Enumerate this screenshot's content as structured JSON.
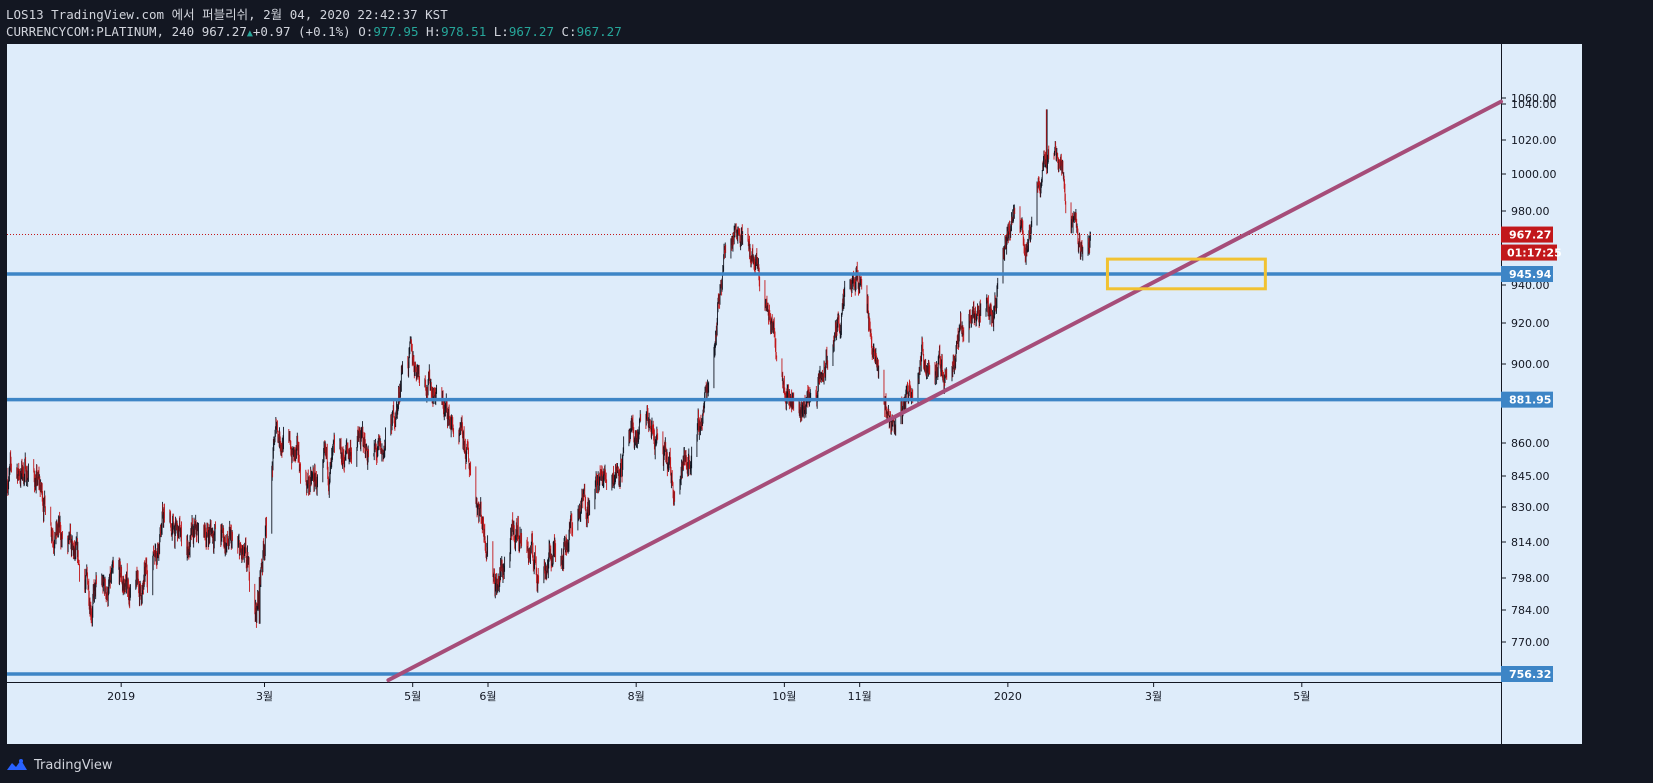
{
  "header": {
    "line1": "LOS13 TradingView.com 에서 퍼블리쉬, 2월 04, 2020 22:42:37 KST",
    "symbol": "CURRENCYCOM:PLATINUM, 240",
    "last": "967.27",
    "change": "+0.97 (+0.1%)",
    "o_label": "O:",
    "o_value": "977.95",
    "h_label": "H:",
    "h_value": "978.51",
    "l_label": "L:",
    "l_value": "967.27",
    "c_label": "C:",
    "c_value": "967.27"
  },
  "footer": {
    "brand": "TradingView"
  },
  "colors": {
    "background": "#131722",
    "plot": "#deecfa",
    "up_candle": "#131722",
    "down_candle": "#c2181b",
    "support": "#3d85c6",
    "trendline": "#a64d79",
    "zone": "#f1c232",
    "price_tag": "#c2181b"
  },
  "chart_data": {
    "type": "candlestick",
    "interval": "240",
    "x_range": [
      "2018-11-15",
      "2020-07-22"
    ],
    "y_ticks": [
      1060.0,
      1040.0,
      1020.0,
      1000.0,
      980.0,
      940.0,
      920.0,
      900.0,
      860.0,
      845.0,
      830.0,
      814.0,
      798.0,
      784.0,
      770.0
    ],
    "x_ticks": [
      {
        "date": "2019-01-01",
        "label": "2019"
      },
      {
        "date": "2019-03-01",
        "label": "3월"
      },
      {
        "date": "2019-05-01",
        "label": "5월"
      },
      {
        "date": "2019-06-01",
        "label": "6월"
      },
      {
        "date": "2019-08-01",
        "label": "8월"
      },
      {
        "date": "2019-10-01",
        "label": "10월"
      },
      {
        "date": "2019-11-01",
        "label": "11월"
      },
      {
        "date": "2020-01-01",
        "label": "2020"
      },
      {
        "date": "2020-03-01",
        "label": "3월"
      },
      {
        "date": "2020-05-01",
        "label": "5월"
      }
    ],
    "price_path": [
      [
        "2018-11-15",
        845
      ],
      [
        "2018-11-25",
        848
      ],
      [
        "2018-12-05",
        820
      ],
      [
        "2018-12-20",
        790
      ],
      [
        "2019-01-01",
        795
      ],
      [
        "2019-01-10",
        792
      ],
      [
        "2019-01-18",
        825
      ],
      [
        "2019-01-28",
        812
      ],
      [
        "2019-02-08",
        820
      ],
      [
        "2019-02-20",
        805
      ],
      [
        "2019-02-26",
        785
      ],
      [
        "2019-03-06",
        868
      ],
      [
        "2019-03-20",
        840
      ],
      [
        "2019-04-01",
        850
      ],
      [
        "2019-04-08",
        862
      ],
      [
        "2019-04-18",
        852
      ],
      [
        "2019-04-25",
        880
      ],
      [
        "2019-04-27",
        905
      ],
      [
        "2019-05-05",
        898
      ],
      [
        "2019-05-15",
        875
      ],
      [
        "2019-05-25",
        848
      ],
      [
        "2019-06-05",
        795
      ],
      [
        "2019-06-13",
        820
      ],
      [
        "2019-06-22",
        802
      ],
      [
        "2019-07-01",
        812
      ],
      [
        "2019-07-12",
        835
      ],
      [
        "2019-07-24",
        850
      ],
      [
        "2019-08-06",
        870
      ],
      [
        "2019-08-16",
        842
      ],
      [
        "2019-08-26",
        860
      ],
      [
        "2019-09-01",
        900
      ],
      [
        "2019-09-06",
        955
      ],
      [
        "2019-09-12",
        975
      ],
      [
        "2019-09-20",
        945
      ],
      [
        "2019-09-30",
        900
      ],
      [
        "2019-10-06",
        875
      ],
      [
        "2019-10-16",
        890
      ],
      [
        "2019-10-26",
        930
      ],
      [
        "2019-11-02",
        945
      ],
      [
        "2019-11-10",
        880
      ],
      [
        "2019-11-16",
        868
      ],
      [
        "2019-11-26",
        905
      ],
      [
        "2019-12-06",
        895
      ],
      [
        "2019-12-16",
        925
      ],
      [
        "2019-12-26",
        928
      ],
      [
        "2020-01-03",
        975
      ],
      [
        "2020-01-10",
        960
      ],
      [
        "2020-01-16",
        1010
      ],
      [
        "2020-01-22",
        1015
      ],
      [
        "2020-01-26",
        985
      ],
      [
        "2020-02-01",
        952
      ],
      [
        "2020-02-04",
        967.27
      ]
    ],
    "high": [
      "2020-01-17",
      1037
    ],
    "low": [
      "2019-02-27",
      778
    ],
    "last_price": 967.27,
    "last_label": "967.27",
    "countdown": "01:17:25",
    "horizontal_lines": [
      {
        "price": 945.94,
        "label": "945.94"
      },
      {
        "price": 881.95,
        "label": "881.95"
      },
      {
        "price": 756.32,
        "label": "756.32"
      }
    ],
    "trendline": [
      [
        "2019-04-21",
        753
      ],
      [
        "2020-07-22",
        1048
      ]
    ],
    "zone": {
      "from": "2020-02-11",
      "to": "2020-04-16",
      "top": 954,
      "bottom": 938
    }
  }
}
